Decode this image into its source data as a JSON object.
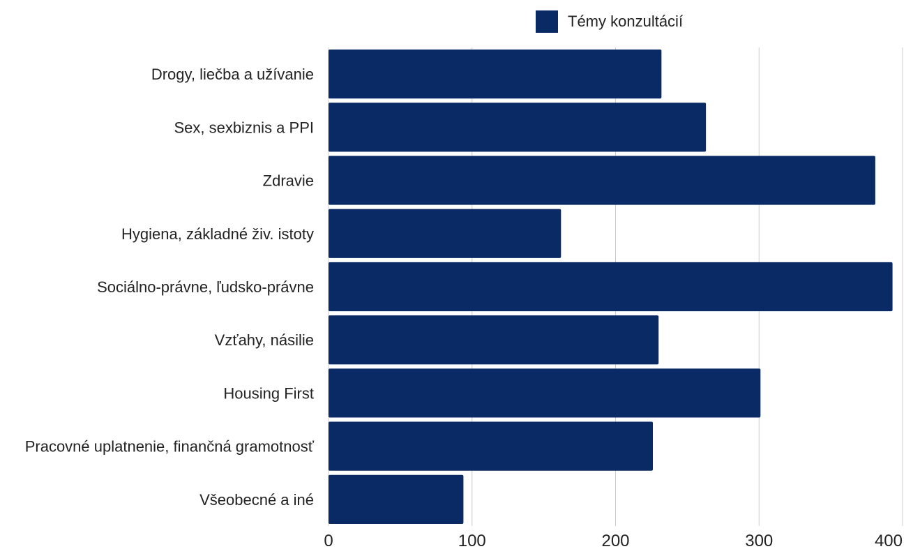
{
  "chart_data": {
    "type": "bar",
    "orientation": "horizontal",
    "categories": [
      "Drogy, liečba a užívanie",
      "Sex, sexbiznis a PPI",
      "Zdravie",
      "Hygiena, základné živ. istoty",
      "Sociálno-právne, ľudsko-právne",
      "Vzťahy, násilie",
      "Housing First",
      "Pracovné uplatnenie, finančná gramotnosť",
      "Všeobecné a iné"
    ],
    "series": [
      {
        "name": "Témy konzultácií",
        "color": "#0a2a66",
        "values": [
          232,
          263,
          381,
          162,
          393,
          230,
          301,
          226,
          94
        ]
      }
    ],
    "xlim": [
      0,
      400
    ],
    "x_ticks": [
      "0",
      "100",
      "200",
      "300",
      "400"
    ],
    "grid": true,
    "legend_position": "top-right"
  }
}
